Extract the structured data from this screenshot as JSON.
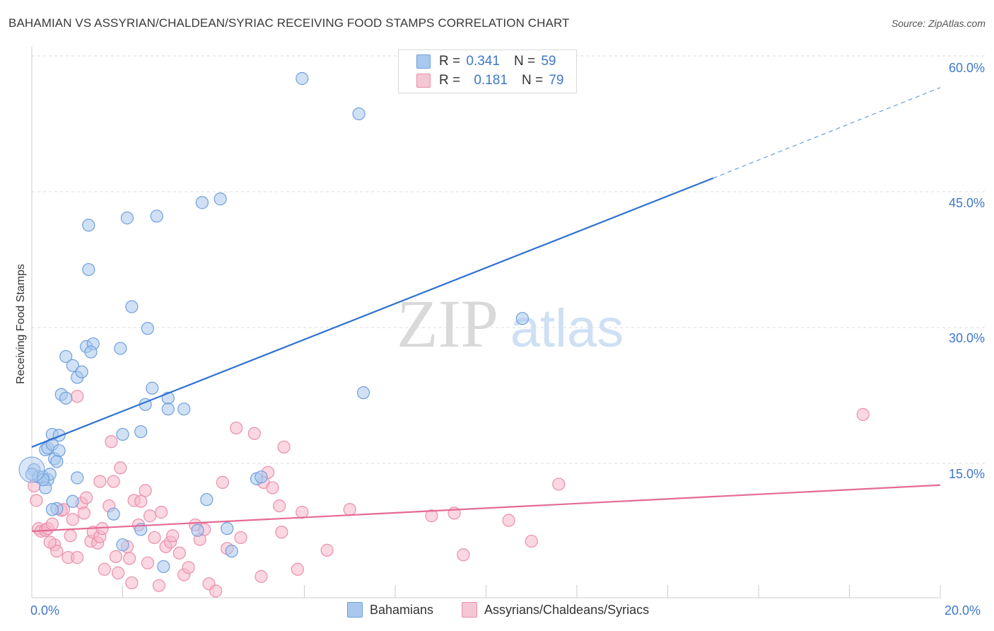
{
  "header": {
    "title": "BAHAMIAN VS ASSYRIAN/CHALDEAN/SYRIAC RECEIVING FOOD STAMPS CORRELATION CHART",
    "source": "Source: ZipAtlas.com"
  },
  "watermark": {
    "part1": "ZIP",
    "part2": "atlas"
  },
  "legend_top": [
    {
      "r_label": "R =",
      "r_value": "0.341",
      "n_label": "N =",
      "n_value": "59"
    },
    {
      "r_label": "R =",
      "r_value": "0.181",
      "n_label": "N =",
      "n_value": "79"
    }
  ],
  "legend_bottom": [
    "Bahamians",
    "Assyrians/Chaldeans/Syriacs"
  ],
  "colors": {
    "blue_fill": "#a9c8ee",
    "blue_stroke": "#6f9fdc",
    "blue_line": "#2f72d0",
    "pink_fill": "#f5b7c9",
    "pink_stroke": "#ea8fab",
    "pink_line": "#e46a94",
    "tick_label": "#3f78c9",
    "grid": "#dddddd"
  },
  "chart_data": {
    "type": "scatter",
    "title": "BAHAMIAN VS ASSYRIAN/CHALDEAN/SYRIAC RECEIVING FOOD STAMPS CORRELATION CHART",
    "xlabel": "",
    "ylabel": "Receiving Food Stamps",
    "xlim": [
      0,
      20
    ],
    "ylim": [
      0,
      62
    ],
    "x_tick_labels": [
      "0.0%",
      "20.0%"
    ],
    "y_ticks": [
      15,
      30,
      45,
      60
    ],
    "y_tick_labels": [
      "15.0%",
      "30.0%",
      "45.0%",
      "60.0%"
    ],
    "grid": true,
    "series": [
      {
        "name": "Bahamians",
        "R": 0.341,
        "N": 59,
        "trend": {
          "x0": 0,
          "y0": 16.8,
          "x1": 15.0,
          "y1": 46.5,
          "dash_to_x": 20,
          "dash_to_y": 56.5
        },
        "points": [
          [
            0.05,
            14.3
          ],
          [
            0.15,
            13.5
          ],
          [
            0.25,
            13.5
          ],
          [
            0.35,
            13.2
          ],
          [
            0.3,
            12.3
          ],
          [
            0.4,
            13.8
          ],
          [
            0.3,
            16.5
          ],
          [
            0.35,
            16.7
          ],
          [
            0.45,
            18.2
          ],
          [
            0.45,
            17.1
          ],
          [
            0.6,
            18.1
          ],
          [
            0.5,
            15.5
          ],
          [
            0.6,
            16.4
          ],
          [
            0.55,
            15.2
          ],
          [
            0.65,
            22.6
          ],
          [
            0.75,
            22.2
          ],
          [
            1.0,
            13.4
          ],
          [
            0.75,
            26.8
          ],
          [
            0.9,
            25.8
          ],
          [
            1.0,
            24.5
          ],
          [
            1.1,
            25.1
          ],
          [
            1.2,
            27.9
          ],
          [
            1.35,
            28.2
          ],
          [
            1.3,
            27.3
          ],
          [
            1.95,
            27.7
          ],
          [
            2.0,
            18.2
          ],
          [
            2.4,
            18.5
          ],
          [
            2.5,
            21.5
          ],
          [
            2.65,
            23.3
          ],
          [
            3.0,
            22.2
          ],
          [
            3.0,
            21.0
          ],
          [
            3.35,
            21.0
          ],
          [
            1.25,
            36.4
          ],
          [
            1.25,
            41.3
          ],
          [
            2.1,
            42.1
          ],
          [
            2.75,
            42.3
          ],
          [
            3.75,
            43.8
          ],
          [
            4.15,
            44.2
          ],
          [
            2.2,
            32.3
          ],
          [
            2.55,
            29.9
          ],
          [
            0.55,
            10.0
          ],
          [
            0.9,
            10.8
          ],
          [
            1.8,
            9.4
          ],
          [
            2.4,
            7.7
          ],
          [
            3.65,
            7.6
          ],
          [
            2.0,
            6.0
          ],
          [
            2.9,
            3.6
          ],
          [
            4.4,
            5.3
          ],
          [
            4.3,
            7.8
          ],
          [
            3.85,
            11.0
          ],
          [
            4.95,
            13.3
          ],
          [
            5.05,
            13.5
          ],
          [
            5.95,
            57.5
          ],
          [
            7.2,
            53.6
          ],
          [
            7.3,
            22.8
          ],
          [
            10.8,
            31.0
          ],
          [
            0.0,
            13.8
          ],
          [
            0.25,
            13.2
          ],
          [
            0.45,
            9.9
          ]
        ]
      },
      {
        "name": "Assyrians/Chaldeans/Syriacs",
        "R": 0.181,
        "N": 79,
        "trend": {
          "x0": 0,
          "y0": 7.5,
          "x1": 20,
          "y1": 12.6
        },
        "points": [
          [
            0.05,
            12.5
          ],
          [
            0.1,
            10.9
          ],
          [
            0.15,
            7.8
          ],
          [
            0.2,
            7.5
          ],
          [
            0.3,
            7.6
          ],
          [
            0.35,
            7.8
          ],
          [
            0.45,
            8.3
          ],
          [
            0.5,
            6.0
          ],
          [
            0.55,
            5.3
          ],
          [
            0.65,
            9.8
          ],
          [
            0.7,
            9.9
          ],
          [
            0.8,
            4.6
          ],
          [
            0.85,
            7.0
          ],
          [
            0.9,
            8.8
          ],
          [
            1.0,
            4.6
          ],
          [
            1.1,
            10.6
          ],
          [
            1.15,
            9.5
          ],
          [
            1.2,
            11.2
          ],
          [
            1.3,
            6.4
          ],
          [
            1.35,
            7.4
          ],
          [
            1.45,
            6.2
          ],
          [
            1.5,
            6.9
          ],
          [
            1.55,
            7.8
          ],
          [
            1.6,
            3.3
          ],
          [
            1.7,
            10.3
          ],
          [
            1.75,
            17.4
          ],
          [
            1.8,
            13.0
          ],
          [
            1.85,
            4.7
          ],
          [
            1.9,
            2.9
          ],
          [
            1.95,
            14.5
          ],
          [
            2.1,
            5.8
          ],
          [
            2.15,
            4.5
          ],
          [
            2.2,
            1.8
          ],
          [
            2.25,
            10.9
          ],
          [
            2.35,
            8.2
          ],
          [
            2.4,
            10.8
          ],
          [
            2.5,
            12.0
          ],
          [
            2.55,
            4.0
          ],
          [
            2.6,
            9.2
          ],
          [
            2.7,
            6.8
          ],
          [
            2.8,
            1.5
          ],
          [
            2.85,
            9.6
          ],
          [
            2.95,
            5.8
          ],
          [
            3.05,
            6.3
          ],
          [
            3.1,
            7.0
          ],
          [
            3.25,
            5.1
          ],
          [
            3.35,
            2.7
          ],
          [
            3.45,
            3.5
          ],
          [
            3.6,
            8.2
          ],
          [
            3.7,
            6.6
          ],
          [
            3.8,
            7.7
          ],
          [
            3.9,
            1.7
          ],
          [
            4.05,
            0.9
          ],
          [
            4.2,
            12.9
          ],
          [
            4.3,
            5.6
          ],
          [
            4.5,
            18.9
          ],
          [
            4.6,
            6.8
          ],
          [
            4.9,
            18.3
          ],
          [
            5.05,
            2.5
          ],
          [
            5.1,
            12.9
          ],
          [
            5.2,
            14.0
          ],
          [
            5.3,
            12.3
          ],
          [
            5.45,
            10.3
          ],
          [
            5.5,
            7.4
          ],
          [
            5.55,
            16.8
          ],
          [
            5.85,
            3.3
          ],
          [
            5.95,
            9.6
          ],
          [
            6.5,
            5.4
          ],
          [
            7.0,
            9.9
          ],
          [
            8.8,
            9.2
          ],
          [
            9.3,
            9.5
          ],
          [
            9.5,
            4.9
          ],
          [
            10.5,
            8.7
          ],
          [
            11.0,
            6.4
          ],
          [
            11.6,
            12.7
          ],
          [
            18.3,
            20.4
          ],
          [
            0.4,
            6.3
          ],
          [
            1.0,
            22.4
          ],
          [
            1.5,
            13.0
          ]
        ]
      }
    ]
  }
}
